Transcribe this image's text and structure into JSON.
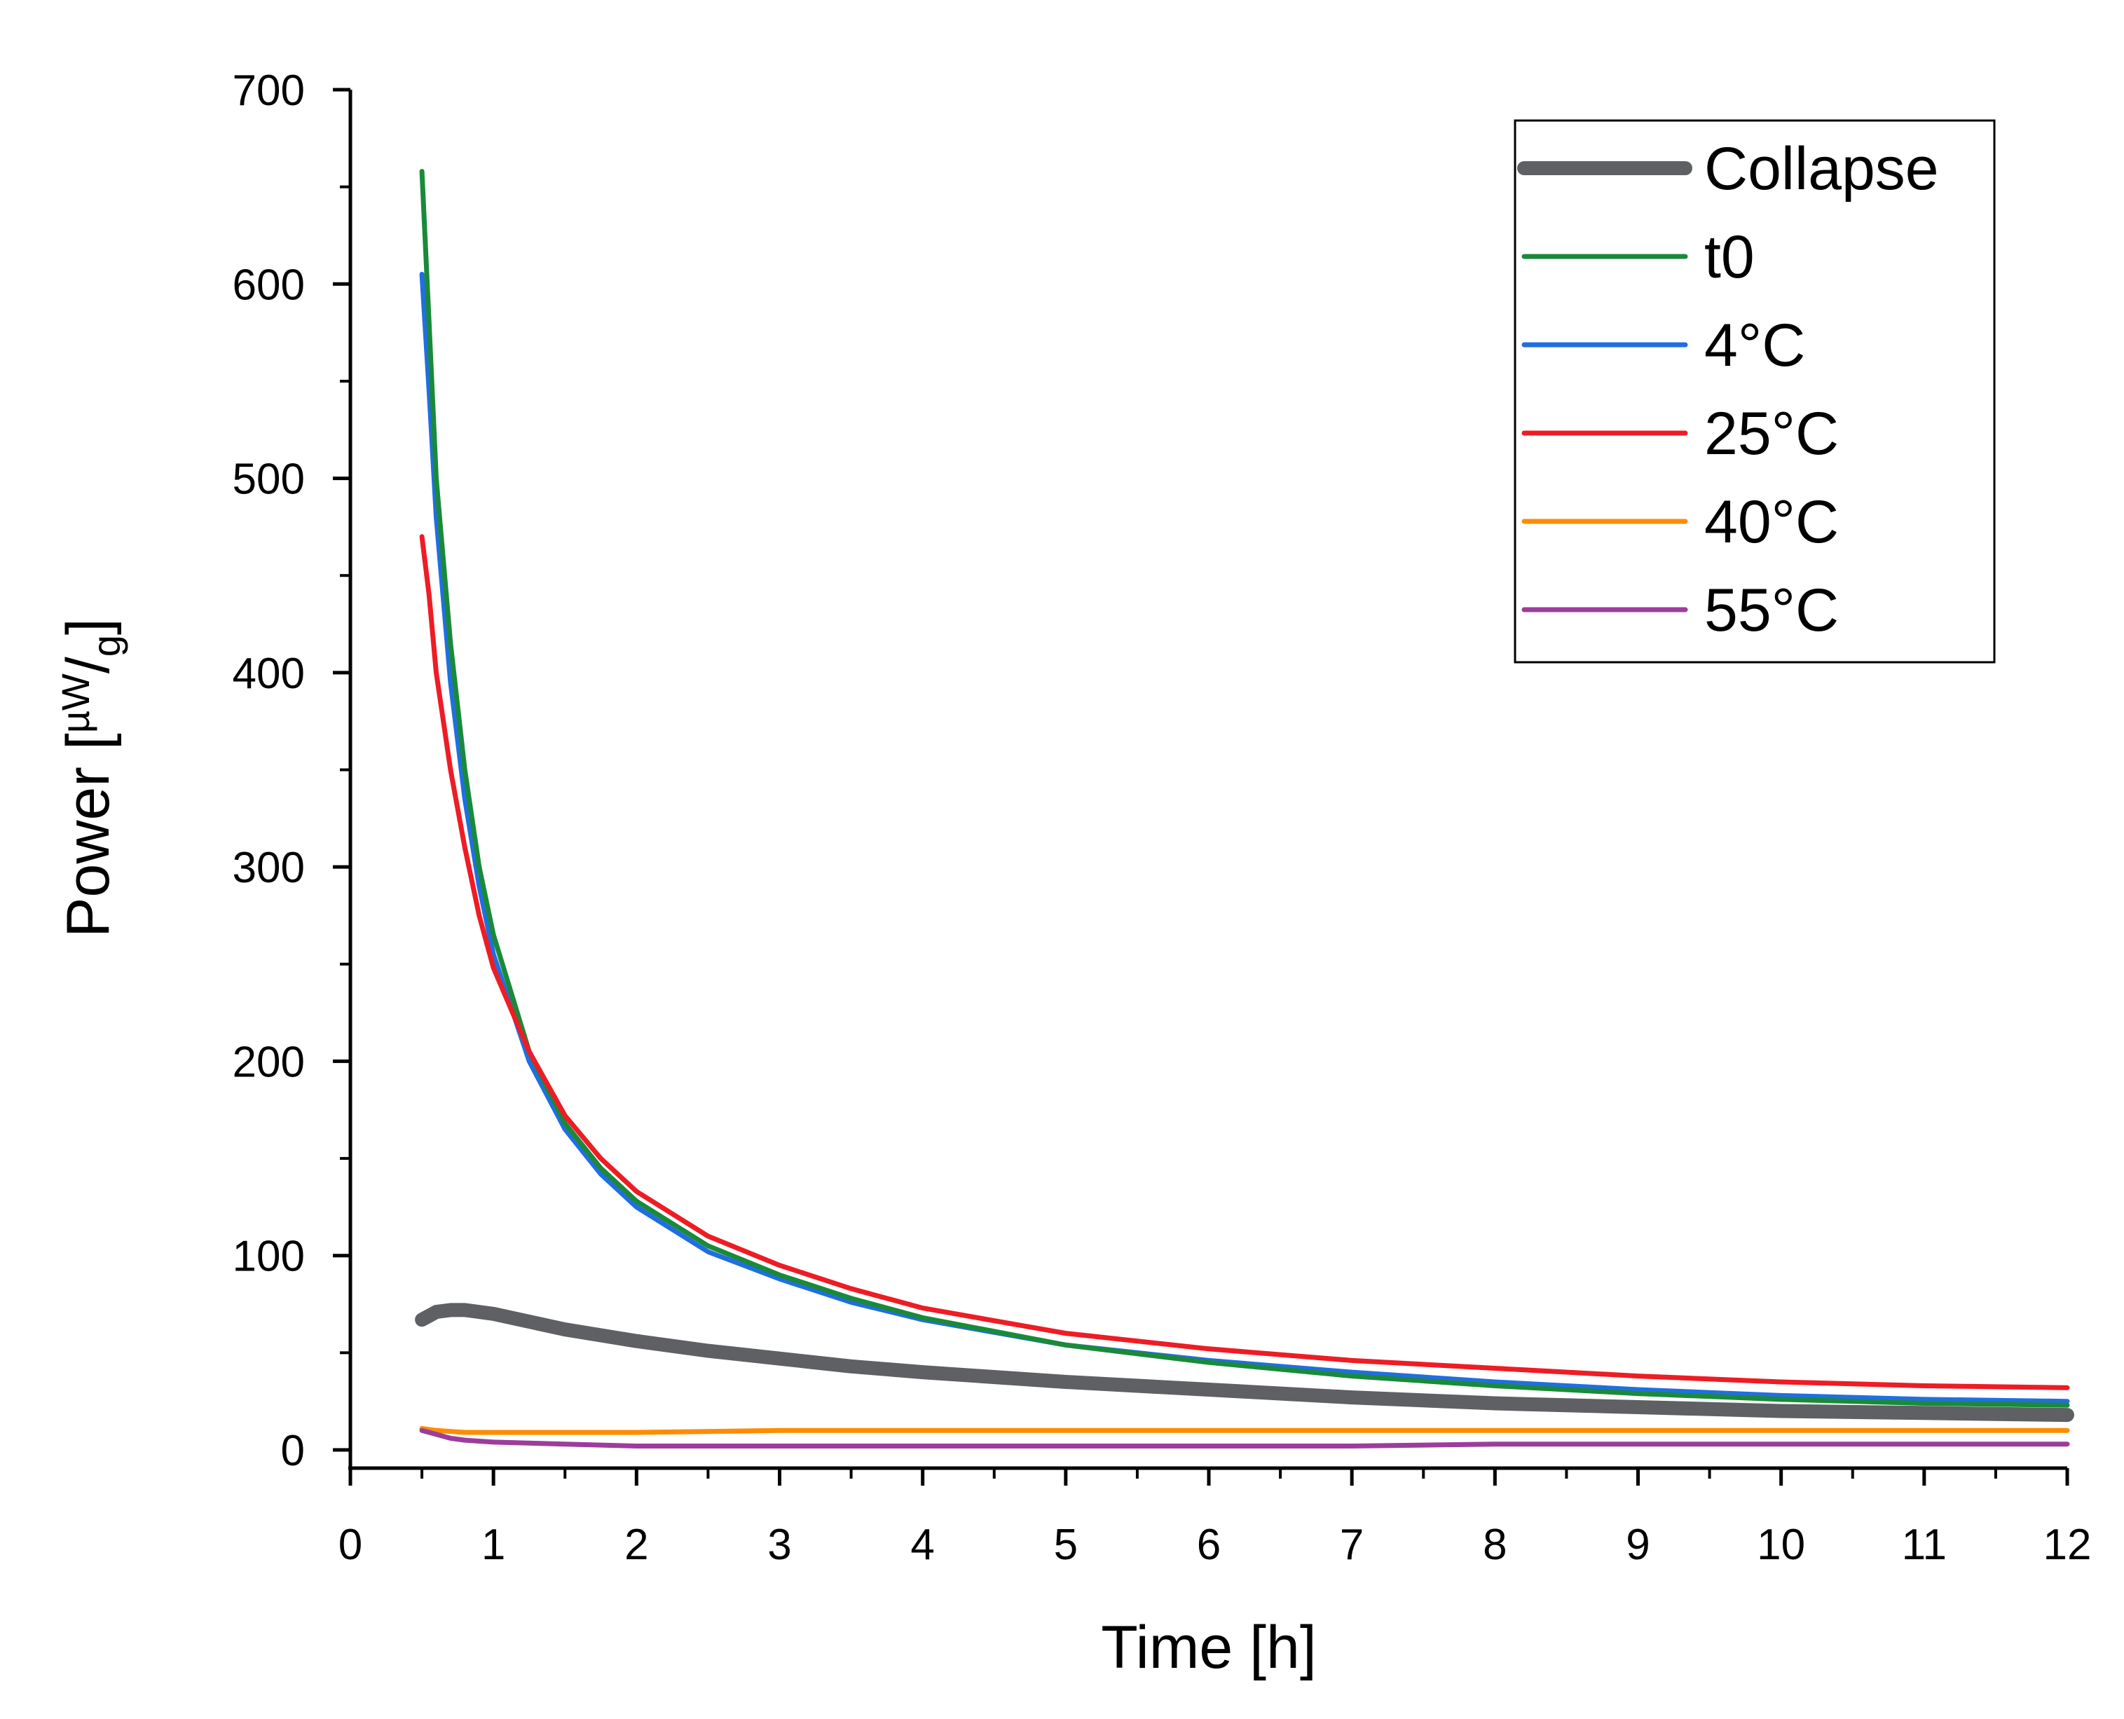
{
  "chart_data": {
    "type": "line",
    "title": "",
    "xlabel": "Time [h]",
    "ylabel": {
      "prefix": "Power [",
      "numerator": "µW",
      "slash": "/",
      "denominator": "g",
      "suffix": "]"
    },
    "xlim": [
      0,
      12
    ],
    "ylim": [
      -10,
      700
    ],
    "x_ticks": [
      "0",
      "1",
      "2",
      "3",
      "4",
      "5",
      "6",
      "7",
      "8",
      "9",
      "10",
      "11",
      "12"
    ],
    "y_ticks": [
      "0",
      "100",
      "200",
      "300",
      "400",
      "500",
      "600",
      "700"
    ],
    "grid": false,
    "legend_position": "top-right",
    "series": [
      {
        "name": "Collapse",
        "color": "#5f6064",
        "thick": true,
        "x": [
          0.5,
          0.55,
          0.6,
          0.7,
          0.8,
          1.0,
          1.25,
          1.5,
          2.0,
          2.5,
          3.0,
          3.5,
          4.0,
          5.0,
          6.0,
          7.0,
          8.0,
          9.0,
          10.0,
          11.0,
          12.0
        ],
        "y": [
          67,
          69,
          71,
          72,
          72,
          70,
          66,
          62,
          56,
          51,
          47,
          43,
          40,
          35,
          31,
          27,
          24,
          22,
          20,
          19,
          18
        ]
      },
      {
        "name": "t0",
        "color": "#1a8a3a",
        "x": [
          0.5,
          0.55,
          0.6,
          0.7,
          0.8,
          0.9,
          1.0,
          1.25,
          1.5,
          1.75,
          2.0,
          2.5,
          3.0,
          3.5,
          4.0,
          5.0,
          6.0,
          7.0,
          8.0,
          9.0,
          10.0,
          11.0,
          12.0
        ],
        "y": [
          658,
          580,
          500,
          415,
          350,
          300,
          265,
          205,
          168,
          145,
          128,
          105,
          90,
          78,
          68,
          54,
          45,
          38,
          33,
          29,
          26,
          24,
          23
        ]
      },
      {
        "name": "4°C",
        "color": "#1f6fe0",
        "x": [
          0.5,
          0.55,
          0.6,
          0.7,
          0.8,
          0.9,
          1.0,
          1.25,
          1.5,
          1.75,
          2.0,
          2.5,
          3.0,
          3.5,
          4.0,
          5.0,
          6.0,
          7.0,
          8.0,
          9.0,
          10.0,
          11.0,
          12.0
        ],
        "y": [
          605,
          545,
          480,
          395,
          335,
          290,
          255,
          200,
          165,
          142,
          125,
          102,
          88,
          76,
          67,
          54,
          46,
          40,
          35,
          31,
          28,
          26,
          25
        ]
      },
      {
        "name": "25°C",
        "color": "#ee1c24",
        "x": [
          0.5,
          0.55,
          0.6,
          0.7,
          0.8,
          0.9,
          1.0,
          1.25,
          1.5,
          1.75,
          2.0,
          2.5,
          3.0,
          3.5,
          4.0,
          5.0,
          6.0,
          7.0,
          8.0,
          9.0,
          10.0,
          11.0,
          12.0
        ],
        "y": [
          470,
          440,
          400,
          350,
          310,
          275,
          248,
          205,
          172,
          150,
          133,
          110,
          95,
          83,
          73,
          60,
          52,
          46,
          42,
          38,
          35,
          33,
          32
        ]
      },
      {
        "name": "40°C",
        "color": "#ff8c00",
        "x": [
          0.5,
          0.6,
          0.8,
          1.0,
          2.0,
          3.0,
          4.0,
          5.0,
          6.0,
          7.0,
          8.0,
          9.0,
          10.0,
          11.0,
          12.0
        ],
        "y": [
          11,
          10,
          9,
          9,
          9,
          10,
          10,
          10,
          10,
          10,
          10,
          10,
          10,
          10,
          10
        ]
      },
      {
        "name": "55°C",
        "color": "#9c3d9c",
        "x": [
          0.5,
          0.55,
          0.6,
          0.7,
          0.8,
          1.0,
          1.5,
          2.0,
          3.0,
          4.0,
          5.0,
          6.0,
          7.0,
          8.0,
          9.0,
          10.0,
          11.0,
          12.0
        ],
        "y": [
          10,
          9,
          8,
          6,
          5,
          4,
          3,
          2,
          2,
          2,
          2,
          2,
          2,
          3,
          3,
          3,
          3,
          3
        ]
      }
    ]
  }
}
